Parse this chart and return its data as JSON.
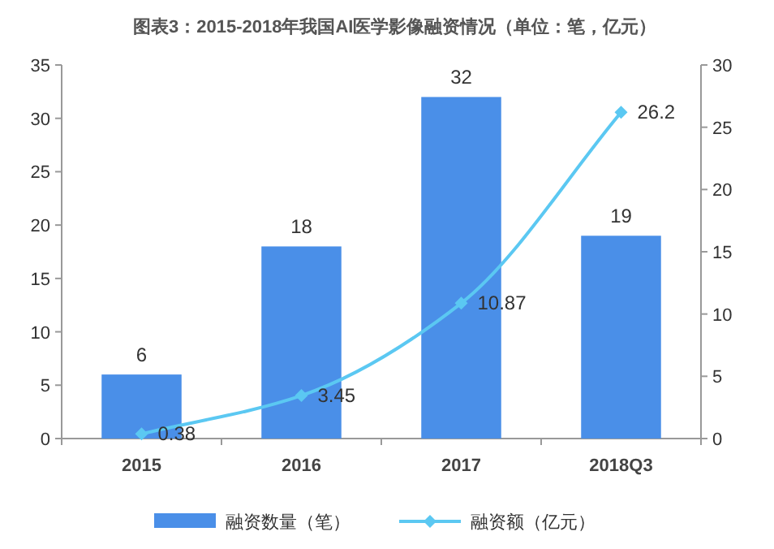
{
  "chart_data": {
    "type": "bar",
    "title": "图表3：2015-2018年我国AI医学影像融资情况（单位：笔，亿元）",
    "categories": [
      "2015",
      "2016",
      "2017",
      "2018Q3"
    ],
    "series": [
      {
        "name": "融资数量（笔）",
        "color": "#4a8fe8",
        "values": [
          6,
          18,
          32,
          19
        ]
      },
      {
        "name": "融资额（亿元）",
        "type": "line",
        "axis": "y2",
        "color": "#5bc8f2",
        "values": [
          0.38,
          3.45,
          10.87,
          26.2
        ]
      }
    ],
    "ylim": [
      0,
      35
    ],
    "yticks": [
      0,
      5,
      10,
      15,
      20,
      25,
      30,
      35
    ],
    "y2lim": [
      0,
      30
    ],
    "y2ticks": [
      0,
      5,
      10,
      15,
      20,
      25,
      30
    ],
    "data_labels": true,
    "legend": "bottom",
    "grid": false,
    "marker": "diamond"
  }
}
